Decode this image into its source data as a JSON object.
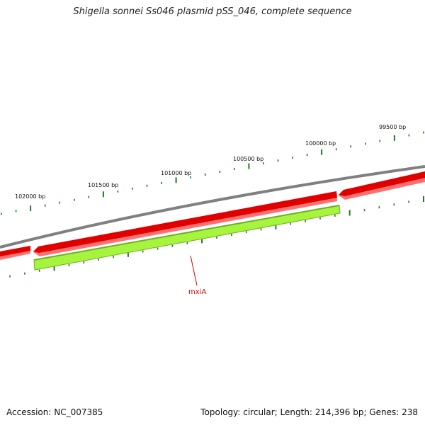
{
  "title": "Shigella sonnei Ss046 plasmid pSS_046, complete sequence",
  "footer": {
    "accession": "Accession: NC_007385",
    "stats": "Topology: circular; Length: 214,396 bp; Genes: 238"
  },
  "ruler_labels": [
    {
      "text": "102000 bp",
      "bp": 102000
    },
    {
      "text": "101500 bp",
      "bp": 101500
    },
    {
      "text": "101000 bp",
      "bp": 101000
    },
    {
      "text": "100500 bp",
      "bp": 100500
    },
    {
      "text": "100000 bp",
      "bp": 100000
    },
    {
      "text": "99500 bp",
      "bp": 99500
    }
  ],
  "genes": [
    {
      "name": "mxiA",
      "label": "mxiA",
      "color": "#a6f53c"
    }
  ],
  "colors": {
    "backbone": "#808080",
    "cds": "#e00000",
    "cds_shadow": "#ff7070",
    "gene": "#a6f53c",
    "gene_edge": "#6fae2a",
    "tick": "#1f7a1f",
    "gene_label": "#d40000"
  }
}
